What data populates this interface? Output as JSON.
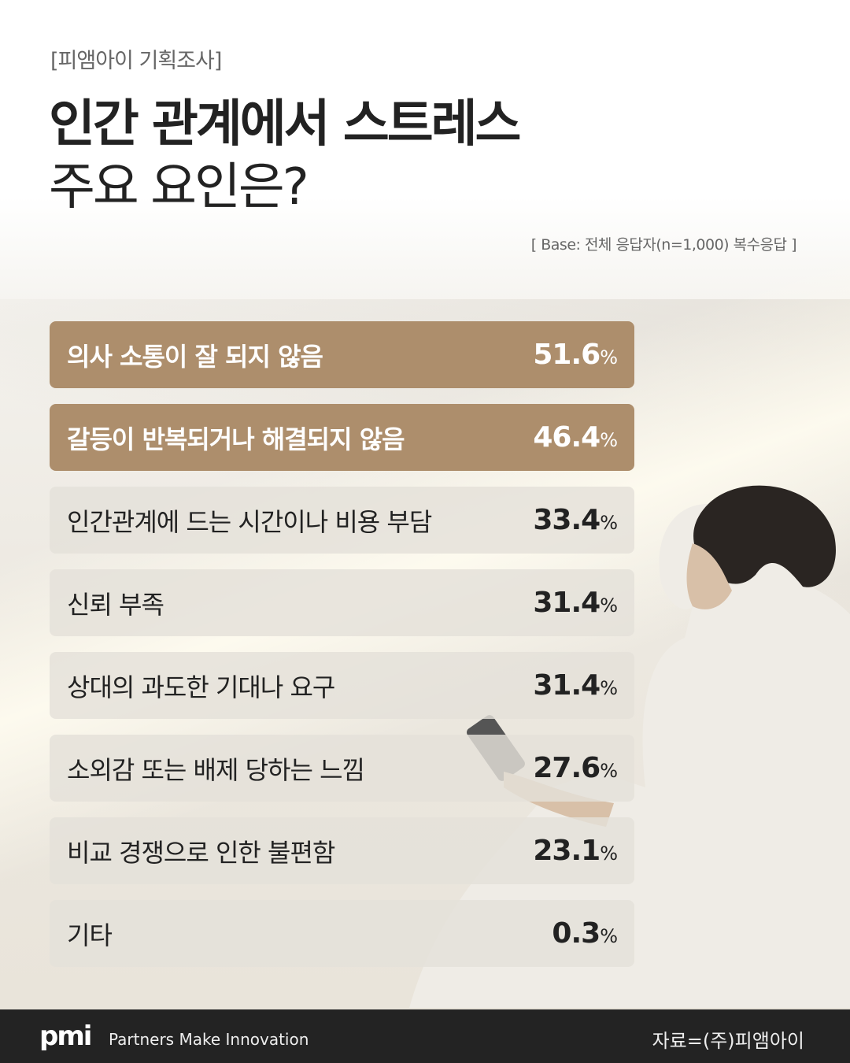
{
  "header": {
    "subtitle": "[피앰아이 기획조사]",
    "title_line1": "인간 관계에서 스트레스",
    "title_line2": "주요 요인은?",
    "base_note": "[ Base: 전체 응답자(n=1,000) 복수응답 ]"
  },
  "colors": {
    "highlight": "#ad8e6c",
    "row": "#e4e0d9",
    "footer": "#232323"
  },
  "chart_data": {
    "type": "table",
    "categories": [
      "의사 소통이 잘 되지 않음",
      "갈등이 반복되거나 해결되지 않음",
      "인간관계에 드는 시간이나 비용 부담",
      "신뢰 부족",
      "상대의 과도한 기대나 요구",
      "소외감 또는 배제 당하는 느낌",
      "비교 경쟁으로 인한 불편함",
      "기타"
    ],
    "values": [
      51.6,
      46.4,
      33.4,
      31.4,
      31.4,
      27.6,
      23.1,
      0.3
    ],
    "unit": "%",
    "highlighted": [
      0,
      1
    ]
  },
  "footer": {
    "logo": "pmi",
    "tagline": "Partners Make Innovation",
    "source": "자료=(주)피앰아이"
  }
}
